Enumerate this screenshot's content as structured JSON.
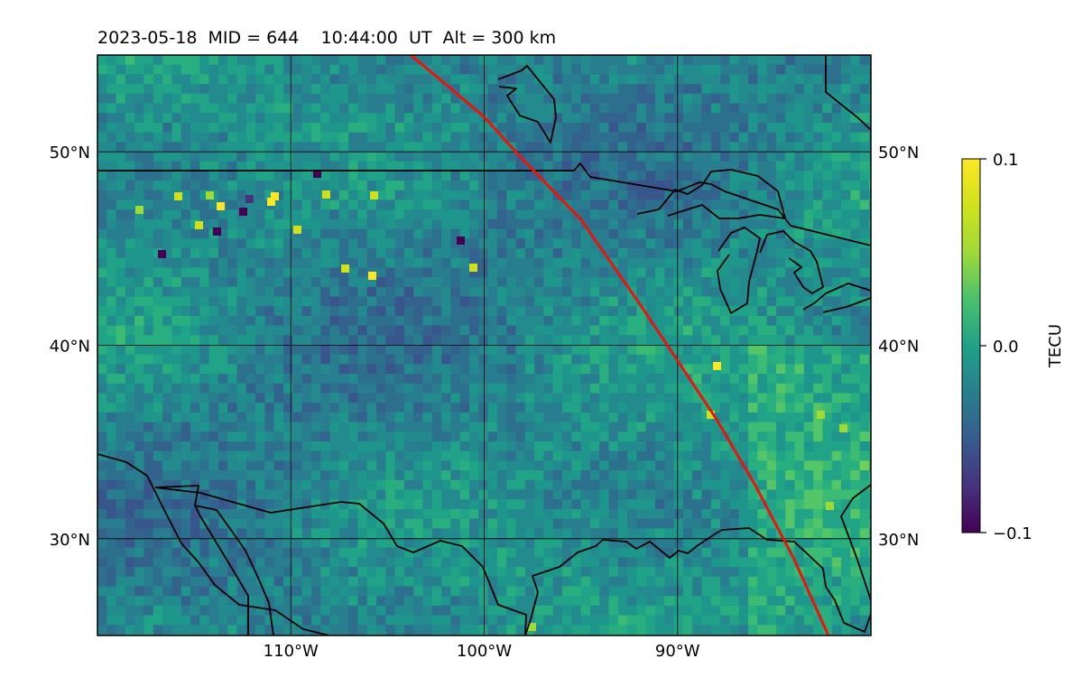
{
  "title": "2023-05-18  MID = 644    10:44:00  UT  Alt = 300 km",
  "map": {
    "lon_range": [
      -120,
      -80
    ],
    "lat_range": [
      25,
      55
    ],
    "lat_ticks": [
      {
        "value": 50,
        "label": "50°N"
      },
      {
        "value": 40,
        "label": "40°N"
      },
      {
        "value": 30,
        "label": "30°N"
      }
    ],
    "lon_ticks": [
      {
        "value": -110,
        "label": "110°W"
      },
      {
        "value": -100,
        "label": "100°W"
      },
      {
        "value": -90,
        "label": "90°W"
      }
    ],
    "grid": true,
    "track_color": "#e8150d",
    "track": [
      [
        -103.8,
        55
      ],
      [
        -102,
        53.5
      ],
      [
        -100,
        51.8
      ],
      [
        -98,
        49.6
      ],
      [
        -95,
        46.5
      ],
      [
        -92,
        42.2
      ],
      [
        -90,
        39.2
      ],
      [
        -88,
        36.2
      ],
      [
        -86,
        32.8
      ],
      [
        -84,
        29
      ],
      [
        -82.2,
        25
      ]
    ]
  },
  "colorbar": {
    "label": "TECU",
    "min": -0.1,
    "max": 0.1,
    "ticks": [
      {
        "value": 0.1,
        "label": "0.1"
      },
      {
        "value": 0.0,
        "label": "0.0"
      },
      {
        "value": -0.1,
        "label": "−0.1"
      }
    ],
    "colormap": "viridis"
  }
}
